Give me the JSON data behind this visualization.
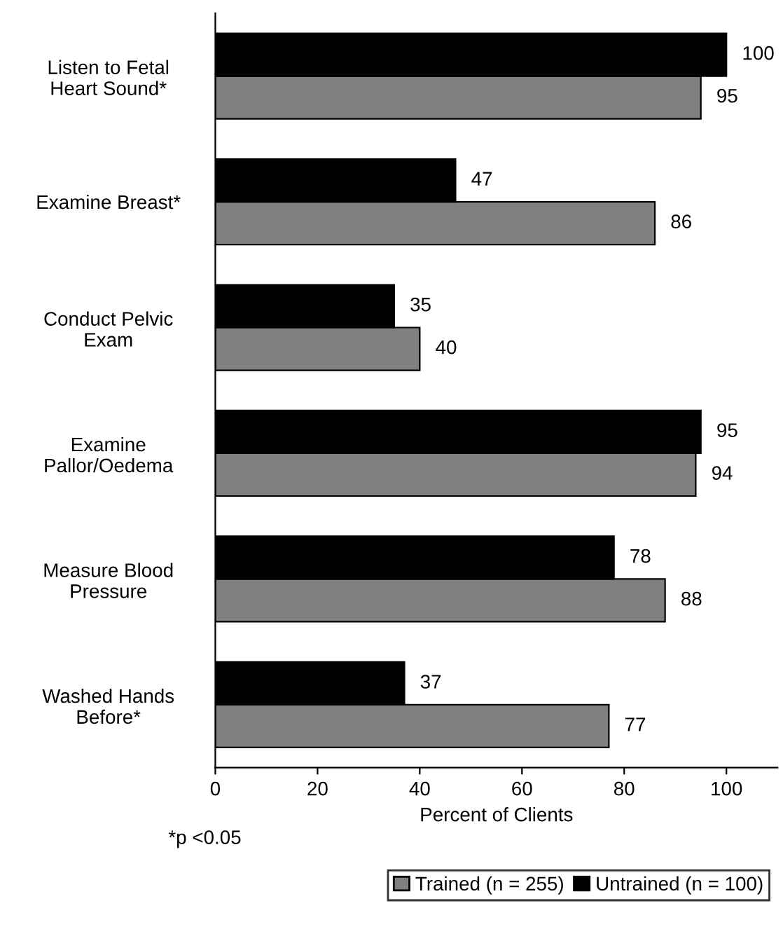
{
  "chart_data": {
    "type": "bar",
    "orientation": "horizontal",
    "categories": [
      "Listen to Fetal\nHeart Sound*",
      "Examine Breast*",
      "Conduct Pelvic\nExam",
      "Examine\nPallor/Oedema",
      "Measure Blood\nPressure",
      "Washed Hands\nBefore*"
    ],
    "series": [
      {
        "name": "Trained (n = 255)",
        "color": "#808080",
        "values": [
          95,
          86,
          40,
          94,
          88,
          77
        ]
      },
      {
        "name": "Untrained (n = 100)",
        "color": "#000000",
        "values": [
          100,
          47,
          35,
          95,
          78,
          37
        ]
      }
    ],
    "xlim": [
      0,
      110
    ],
    "xticks": [
      0,
      20,
      40,
      60,
      80,
      100
    ],
    "xlabel": "Percent of Clients",
    "data_labels": true,
    "grid": false,
    "legend": "bottom",
    "annotations": [
      "*p <0.05"
    ]
  }
}
